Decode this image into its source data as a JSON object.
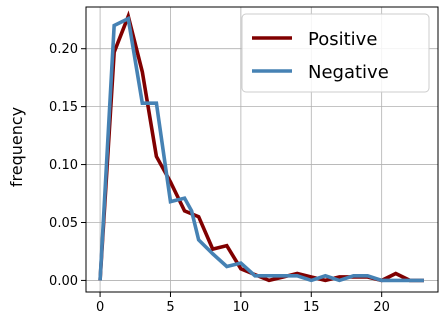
{
  "chart_data": {
    "type": "line",
    "title": "",
    "xlabel": "",
    "ylabel": "frequency",
    "xlim": [
      -1,
      24
    ],
    "ylim": [
      -0.01,
      0.236
    ],
    "grid": true,
    "legend_position": "top-right",
    "x_ticks": [
      0,
      5,
      10,
      15,
      20
    ],
    "x_tick_labels": [
      "0",
      "5",
      "10",
      "15",
      "20"
    ],
    "y_ticks": [
      0.0,
      0.05,
      0.1,
      0.15,
      0.2
    ],
    "y_tick_labels": [
      "0.00",
      "0.05",
      "0.10",
      "0.15",
      "0.20"
    ],
    "series": [
      {
        "name": "Positive",
        "color": "#800000",
        "x": [
          0,
          1,
          2,
          3,
          4,
          5,
          6,
          7,
          8,
          9,
          10,
          11,
          12,
          13,
          14,
          15,
          16,
          17,
          18,
          19,
          20,
          21,
          22,
          23
        ],
        "y": [
          0.0,
          0.197,
          0.228,
          0.18,
          0.107,
          0.085,
          0.06,
          0.055,
          0.027,
          0.03,
          0.01,
          0.005,
          0.0,
          0.003,
          0.006,
          0.003,
          0.0,
          0.003,
          0.003,
          0.003,
          0.0,
          0.006,
          0.0,
          0.0
        ]
      },
      {
        "name": "Negative",
        "color": "#4682b4",
        "x": [
          0,
          1,
          2,
          3,
          3.5,
          4,
          5,
          6,
          6.5,
          7,
          8,
          9,
          10,
          11,
          12,
          13,
          14,
          15,
          16,
          17,
          18,
          19,
          20,
          21,
          22,
          23
        ],
        "y": [
          0.0,
          0.22,
          0.226,
          0.153,
          0.153,
          0.153,
          0.068,
          0.071,
          0.06,
          0.035,
          0.023,
          0.012,
          0.015,
          0.004,
          0.004,
          0.004,
          0.004,
          0.0,
          0.004,
          0.0,
          0.004,
          0.004,
          0.0,
          0.0,
          0.0,
          0.0
        ]
      }
    ]
  }
}
